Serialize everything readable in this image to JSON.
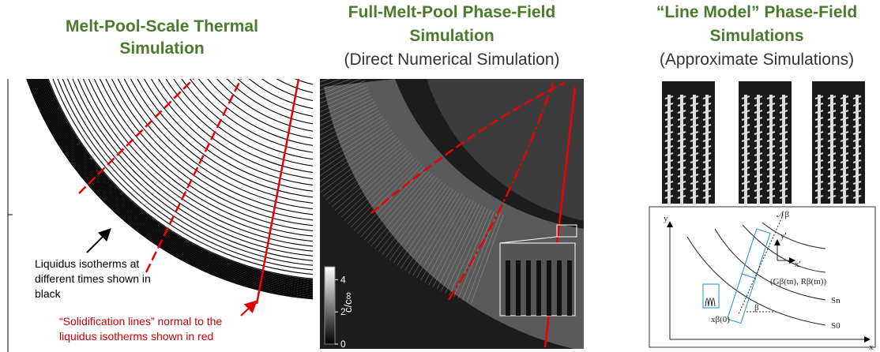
{
  "panels": [
    {
      "title": "Melt-Pool-Scale Thermal Simulation",
      "annotations": [
        "Liquidus isotherms at different times shown in black",
        "“Solidification lines” normal to the liquidus isotherms shown in red"
      ]
    },
    {
      "title": "Full-Melt-Pool Phase-Field Simulation",
      "subtitle": "(Direct Numerical Simulation)",
      "colorbar": {
        "label": "c/c∞",
        "ticks": [
          0,
          2,
          4
        ]
      }
    },
    {
      "title": "“Line Model” Phase-Field Simulations",
      "subtitle": "(Approximate Simulations)",
      "diagram_labels": {
        "y_axis": "y",
        "x_axis": "x",
        "y_prime": "y'",
        "x_prime": "x'",
        "normal": "𝒩β",
        "s_n": "Sn",
        "s_0": "S0",
        "origin": "xβ(0)",
        "angle": "β",
        "point": "(Gβ(tn), Rβ(tn))"
      }
    }
  ]
}
